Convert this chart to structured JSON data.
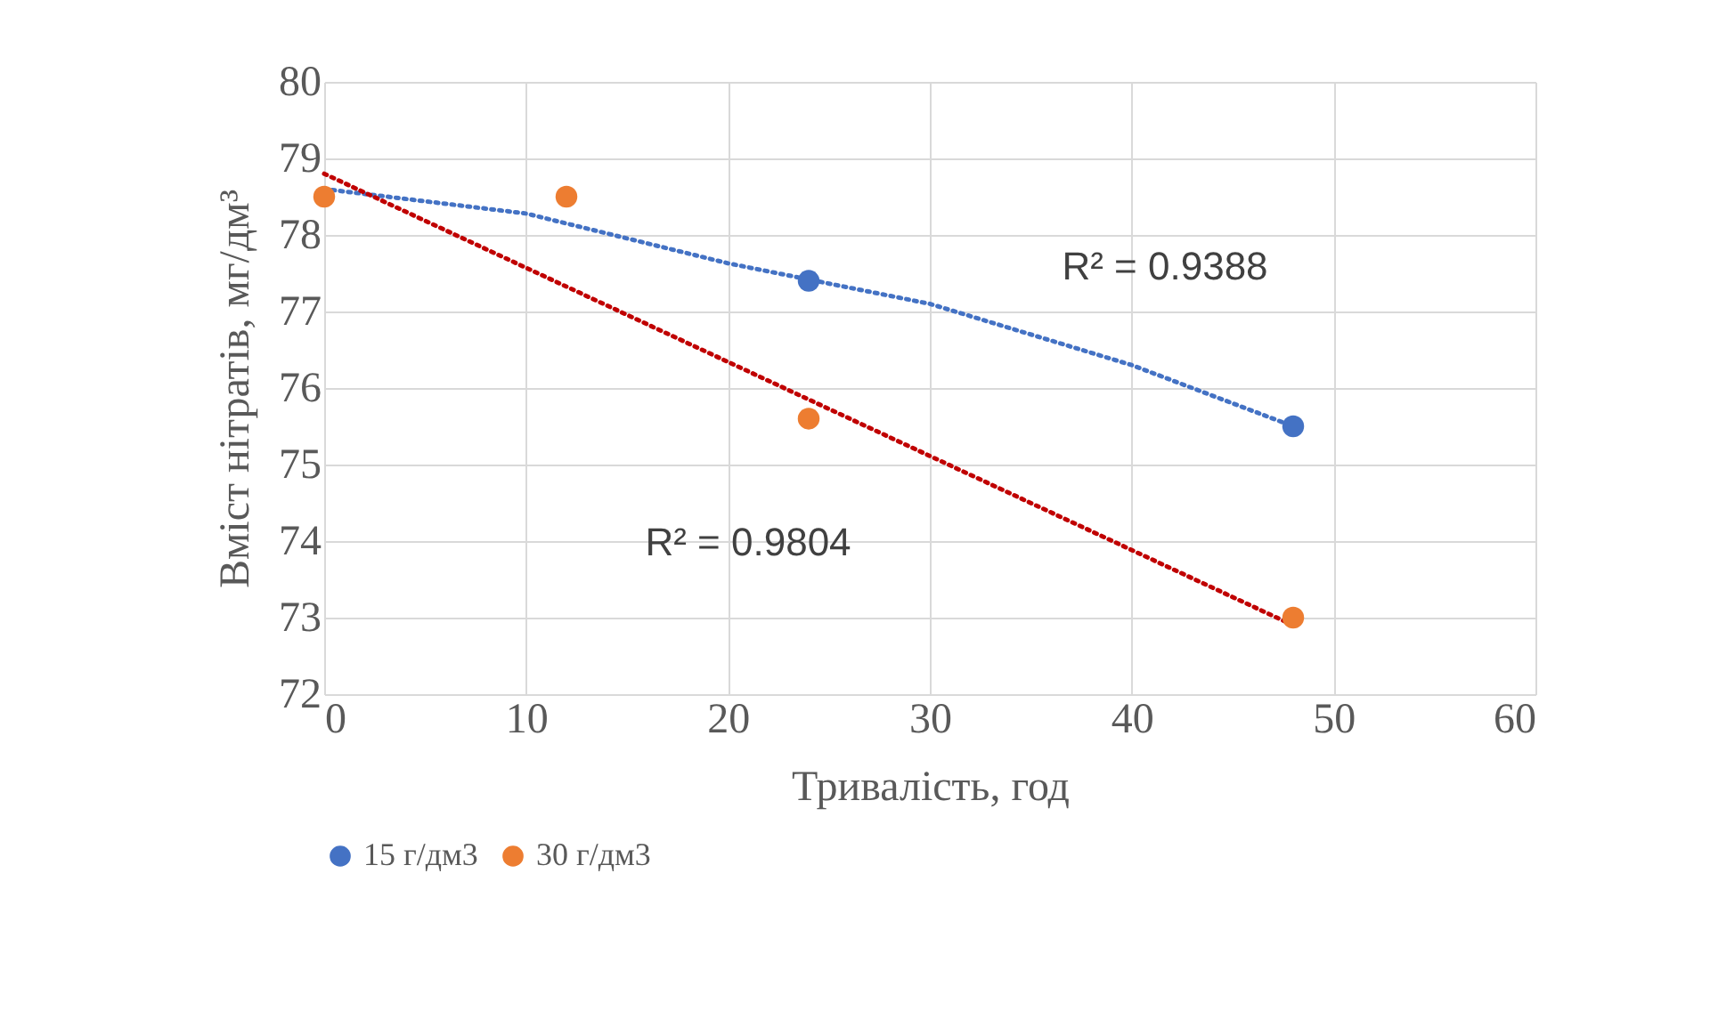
{
  "chart_data": {
    "type": "scatter",
    "xlabel": "Тривалість, год",
    "ylabel": "Вміст нітратів, мг/дм³",
    "x": [
      0,
      12,
      24,
      48
    ],
    "series": [
      {
        "name": "15 г/дм3",
        "color": "#4472c4",
        "values": [
          null,
          null,
          77.4,
          75.5
        ]
      },
      {
        "name": "30 г/дм3",
        "color": "#ed7d31",
        "values": [
          78.5,
          78.5,
          75.6,
          73.0
        ]
      },
      {
        "type": "line",
        "color": "#4472c4",
        "line_style": "dotted",
        "marker": "none",
        "x": [
          0,
          10,
          20,
          30,
          40,
          48
        ],
        "values": [
          78.6,
          78.28,
          77.63,
          77.1,
          76.3,
          75.5
        ]
      },
      {
        "type": "line",
        "color": "#c00000",
        "line_style": "dotted",
        "marker": "none",
        "x": [
          0,
          48
        ],
        "values": [
          78.8,
          72.9
        ]
      }
    ],
    "annotations": [
      "R² = 0.9388",
      "R² = 0.9804"
    ],
    "xlim": [
      0,
      60
    ],
    "xticks": [
      0,
      10,
      20,
      30,
      40,
      50,
      60
    ],
    "ylim": [
      72,
      80
    ],
    "yticks": [
      72,
      73,
      74,
      75,
      76,
      77,
      78,
      79,
      80
    ],
    "grid": true,
    "legend": "bottom left",
    "marker": "circle"
  }
}
